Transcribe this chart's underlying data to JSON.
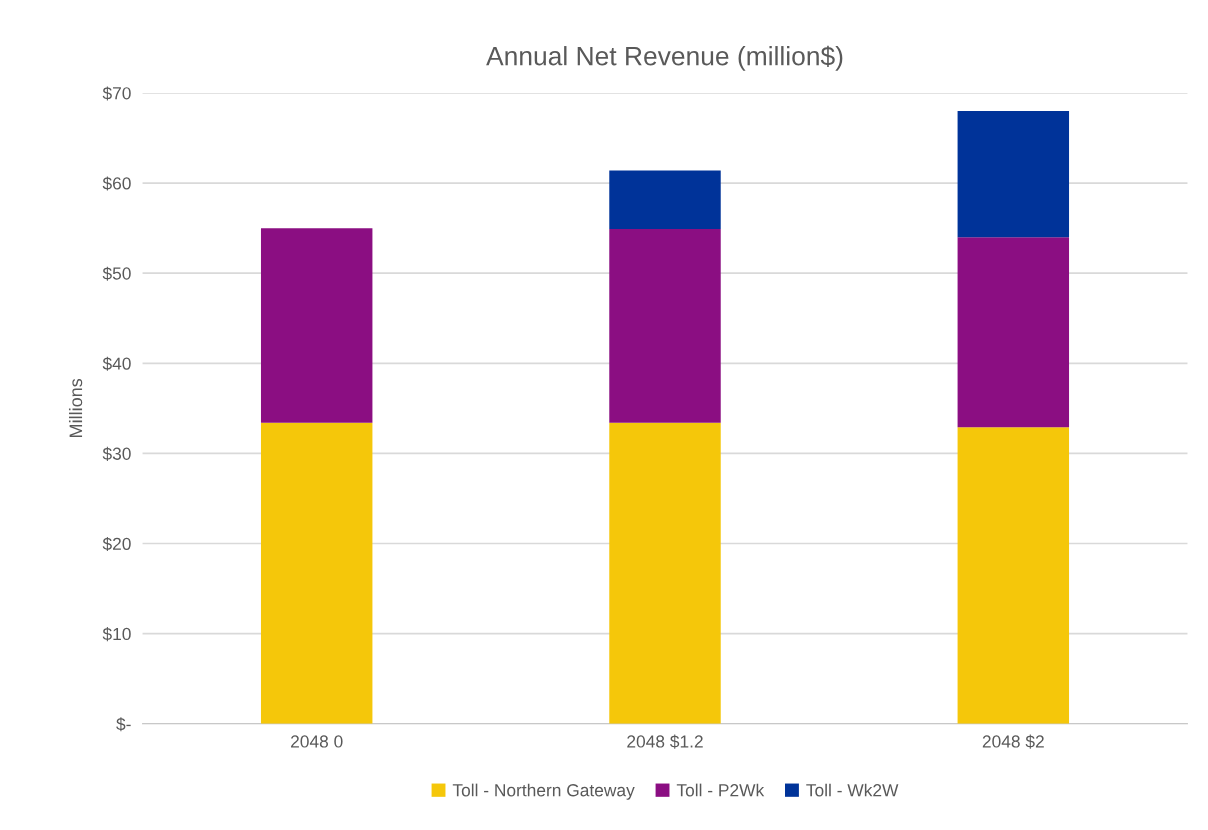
{
  "chart_data": {
    "type": "bar",
    "title": "Annual Net Revenue (million$)",
    "ylabel": "Millions",
    "categories": [
      "2048 0",
      "2048 $1.2",
      "2048 $2"
    ],
    "stacked": true,
    "series": [
      {
        "name": "Toll - Northern Gateway",
        "color": "#f5c70a",
        "values": [
          33.4,
          33.4,
          32.9
        ]
      },
      {
        "name": "Toll - P2Wk",
        "color": "#8b0e82",
        "values": [
          21.6,
          21.5,
          21.1
        ]
      },
      {
        "name": "Toll - Wk2W",
        "color": "#003399",
        "values": [
          0,
          6.5,
          14.0
        ]
      }
    ],
    "ylim": [
      0,
      70
    ],
    "yticks": [
      {
        "value": 0,
        "label": "$-"
      },
      {
        "value": 10,
        "label": "$10"
      },
      {
        "value": 20,
        "label": "$20"
      },
      {
        "value": 30,
        "label": "$30"
      },
      {
        "value": 40,
        "label": "$40"
      },
      {
        "value": 50,
        "label": "$50"
      },
      {
        "value": 60,
        "label": "$60"
      },
      {
        "value": 70,
        "label": "$70"
      }
    ],
    "grid": "y",
    "legend": "bottom"
  }
}
